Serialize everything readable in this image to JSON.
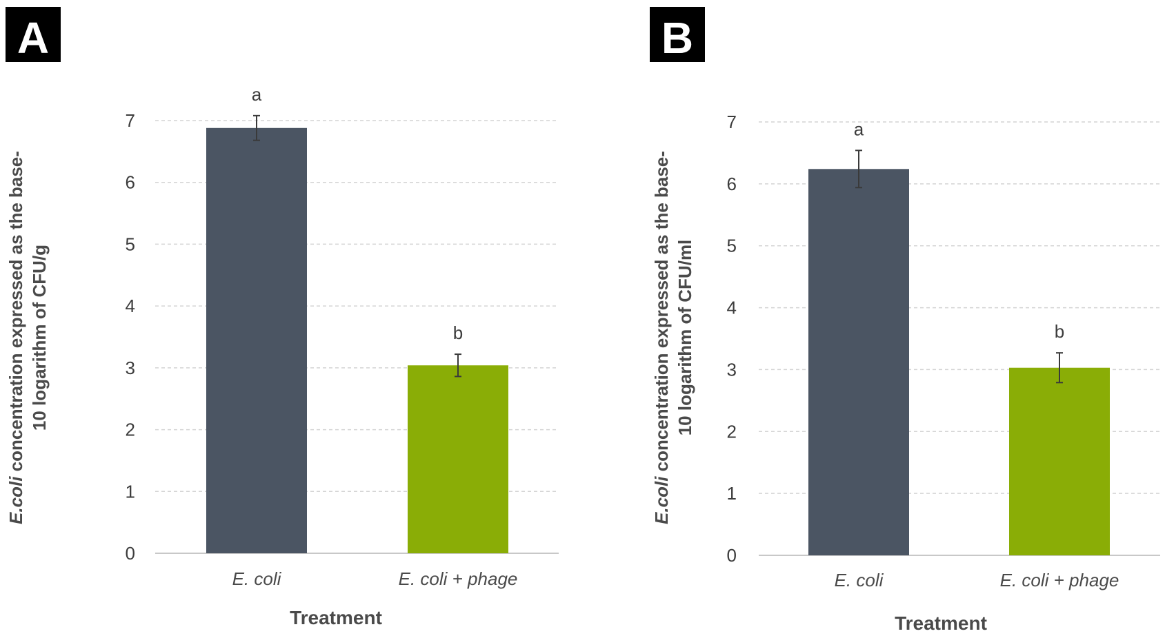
{
  "chart_data": [
    {
      "type": "bar",
      "panel": "A",
      "categories": [
        "E. coli",
        "E. coli + phage"
      ],
      "values": [
        6.88,
        3.04
      ],
      "errors": [
        0.2,
        0.18
      ],
      "significance_letters": [
        "a",
        "b"
      ],
      "colors": [
        "#4b5563",
        "#8aad06"
      ],
      "xlabel": "Treatment",
      "ylabel_italic": "E.coli",
      "ylabel_rest_line1": " concentration expressed as the base-",
      "ylabel_line2": "10 logarithm of CFU/g",
      "ylim": [
        0,
        7
      ],
      "yticks": [
        "0",
        "1",
        "2",
        "3",
        "4",
        "5",
        "6",
        "7"
      ],
      "grid": true
    },
    {
      "type": "bar",
      "panel": "B",
      "categories": [
        "E. coli",
        "E. coli + phage"
      ],
      "values": [
        6.24,
        3.03
      ],
      "errors": [
        0.3,
        0.24
      ],
      "significance_letters": [
        "a",
        "b"
      ],
      "colors": [
        "#4b5563",
        "#8aad06"
      ],
      "xlabel": "Treatment",
      "ylabel_italic": "E.coli",
      "ylabel_rest_line1": " concentration expressed as the base-",
      "ylabel_line2": "10 logarithm of CFU/ml",
      "ylim": [
        0,
        7
      ],
      "yticks": [
        "0",
        "1",
        "2",
        "3",
        "4",
        "5",
        "6",
        "7"
      ],
      "grid": true
    }
  ]
}
